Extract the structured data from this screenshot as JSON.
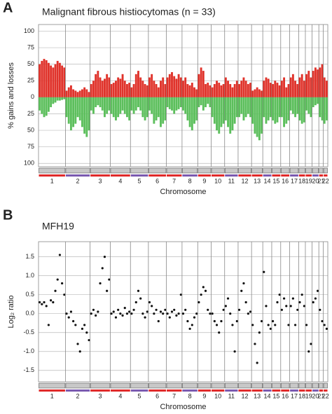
{
  "chart_data": [
    {
      "type": "bar",
      "panel": "A",
      "title": "Malignant fibrous histiocytomas (n = 33)",
      "ylabel": "% gains and losses",
      "xlabel": "Chromosome",
      "chromosomes": [
        "1",
        "2",
        "3",
        "4",
        "5",
        "6",
        "7",
        "8",
        "9",
        "10",
        "11",
        "12",
        "13",
        "14",
        "15",
        "16",
        "17",
        "18",
        "19",
        "20",
        "21",
        "22"
      ],
      "gain_color": "#e0332b",
      "loss_color": "#5cbf5c",
      "grid": true,
      "ylim": [
        -105,
        110
      ],
      "yticks": [
        {
          "value": -100,
          "label": "100"
        },
        {
          "value": -75,
          "label": "75"
        },
        {
          "value": -50,
          "label": "50"
        },
        {
          "value": -25,
          "label": "25"
        },
        0,
        25,
        50,
        75,
        100
      ],
      "gains": [
        [
          50,
          55,
          58,
          56,
          52,
          48,
          45,
          50,
          55,
          52,
          48,
          45
        ],
        [
          10,
          15,
          18,
          12,
          10,
          8,
          10,
          12,
          15,
          12,
          8
        ],
        [
          20,
          25,
          35,
          40,
          30,
          25,
          28,
          35,
          30
        ],
        [
          20,
          22,
          25,
          30,
          28,
          35,
          25,
          20,
          22
        ],
        [
          15,
          20,
          35,
          40,
          30,
          25,
          20,
          18
        ],
        [
          30,
          35,
          25,
          20,
          15,
          25,
          30,
          20
        ],
        [
          30,
          35,
          38,
          32,
          28,
          35,
          30
        ],
        [
          25,
          30,
          20,
          18,
          22,
          15,
          12
        ],
        [
          35,
          45,
          40,
          20,
          22,
          18
        ],
        [
          15,
          20,
          25,
          22,
          18,
          20
        ],
        [
          30,
          25,
          20,
          15,
          20,
          25
        ],
        [
          20,
          25,
          30,
          25,
          20,
          22
        ],
        [
          10,
          12,
          15,
          12,
          10
        ],
        [
          25,
          30,
          28,
          22
        ],
        [
          20,
          25,
          22,
          18
        ],
        [
          25,
          30,
          15,
          20
        ],
        [
          30,
          35,
          25,
          20
        ],
        [
          30,
          35,
          25
        ],
        [
          35,
          40,
          30
        ],
        [
          40,
          45,
          42
        ],
        [
          45,
          50
        ],
        [
          30,
          25
        ]
      ],
      "losses": [
        [
          -20,
          -25,
          -30,
          -28,
          -22,
          -15,
          -10,
          -8,
          -5,
          -5,
          -4,
          -3
        ],
        [
          -30,
          -40,
          -50,
          -45,
          -40,
          -30,
          -35,
          -45,
          -55,
          -60,
          -50
        ],
        [
          -20,
          -25,
          -15,
          -12,
          -15,
          -20,
          -30,
          -25,
          -20
        ],
        [
          -25,
          -30,
          -35,
          -30,
          -25,
          -20,
          -25,
          -30,
          -35
        ],
        [
          -20,
          -25,
          -20,
          -15,
          -20,
          -30,
          -35,
          -30
        ],
        [
          -20,
          -25,
          -40,
          -35,
          -30,
          -45,
          -40,
          -35
        ],
        [
          -15,
          -18,
          -20,
          -25,
          -20,
          -18,
          -15
        ],
        [
          -20,
          -25,
          -35,
          -45,
          -50,
          -40,
          -35
        ],
        [
          -15,
          -12,
          -20,
          -15,
          -10,
          -15
        ],
        [
          -30,
          -40,
          -50,
          -55,
          -45,
          -40
        ],
        [
          -35,
          -45,
          -55,
          -50,
          -40,
          -30
        ],
        [
          -30,
          -25,
          -35,
          -30,
          -25,
          -30
        ],
        [
          -40,
          -55,
          -60,
          -65,
          -55
        ],
        [
          -30,
          -40,
          -35,
          -30
        ],
        [
          -35,
          -40,
          -38,
          -30
        ],
        [
          -30,
          -45,
          -40,
          -35
        ],
        [
          -20,
          -25,
          -30,
          -25
        ],
        [
          -35,
          -40,
          -38
        ],
        [
          -20,
          -25,
          -30
        ],
        [
          -15,
          -12,
          -10
        ],
        [
          -30,
          -35
        ],
        [
          -40,
          -35
        ]
      ]
    },
    {
      "type": "scatter",
      "panel": "B",
      "title": "MFH19",
      "ylabel": "Log₂ ratio",
      "xlabel": "Chromosome",
      "chromosomes": [
        "1",
        "2",
        "3",
        "4",
        "5",
        "6",
        "7",
        "8",
        "9",
        "10",
        "11",
        "12",
        "13",
        "14",
        "15",
        "16",
        "17",
        "18",
        "19",
        "20",
        "21",
        "22"
      ],
      "color": "#111111",
      "grid": true,
      "ylim": [
        -1.8,
        1.9
      ],
      "yticks": [
        -1.5,
        {
          "value": -1,
          "label": "-1.0"
        },
        -0.5,
        {
          "value": 0,
          "label": "0.0"
        },
        0.5,
        {
          "value": 1,
          "label": "1.0"
        },
        1.5
      ],
      "values": [
        [
          0.3,
          0.25,
          0.3,
          0.2,
          -0.3,
          0.35,
          0.3,
          0.6,
          0.9,
          1.55,
          0.8,
          0.5
        ],
        [
          0,
          -0.1,
          0.05,
          -0.2,
          -0.3,
          -0.8,
          -1.0,
          -0.4,
          -0.3,
          -0.5,
          -0.7
        ],
        [
          0,
          0.1,
          -0.05,
          0.05,
          0.8,
          1.2,
          1.5,
          0.6,
          0.9
        ],
        [
          0,
          0.05,
          -0.1,
          0.1,
          0,
          -0.05,
          0.15,
          0,
          0.05
        ],
        [
          0,
          0.1,
          0.3,
          0.6,
          0.4,
          0,
          -0.1,
          0.05
        ],
        [
          0.3,
          0.2,
          0,
          0.1,
          -0.2,
          0.05,
          0,
          0.1
        ],
        [
          0,
          -0.1,
          0.05,
          0.1,
          -0.05,
          0,
          0.5
        ],
        [
          0,
          0.1,
          -0.2,
          -0.4,
          -0.3,
          -0.1,
          0
        ],
        [
          0.3,
          0.5,
          0.7,
          0.6,
          0.1,
          0
        ],
        [
          0,
          -0.2,
          -0.3,
          -0.5,
          -0.2,
          0.1
        ],
        [
          0.2,
          0.4,
          0,
          -0.3,
          -1.0,
          -0.2
        ],
        [
          0.1,
          0.6,
          0.8,
          0.3,
          0,
          0.05
        ],
        [
          -0.3,
          -0.8,
          -1.3,
          -0.5,
          -0.2
        ],
        [
          1.1,
          0.2,
          -0.3,
          -0.4
        ],
        [
          -0.2,
          -0.3,
          0.3,
          0.5
        ],
        [
          0.1,
          0.4,
          0.2,
          -0.3
        ],
        [
          0.2,
          0.4,
          -0.3,
          0.1
        ],
        [
          0.3,
          0.5,
          0.2
        ],
        [
          -0.3,
          -1.0,
          -0.8
        ],
        [
          0.3,
          0.4,
          0.6
        ],
        [
          0.1,
          -0.2
        ],
        [
          -0.3,
          -0.4
        ]
      ]
    }
  ]
}
